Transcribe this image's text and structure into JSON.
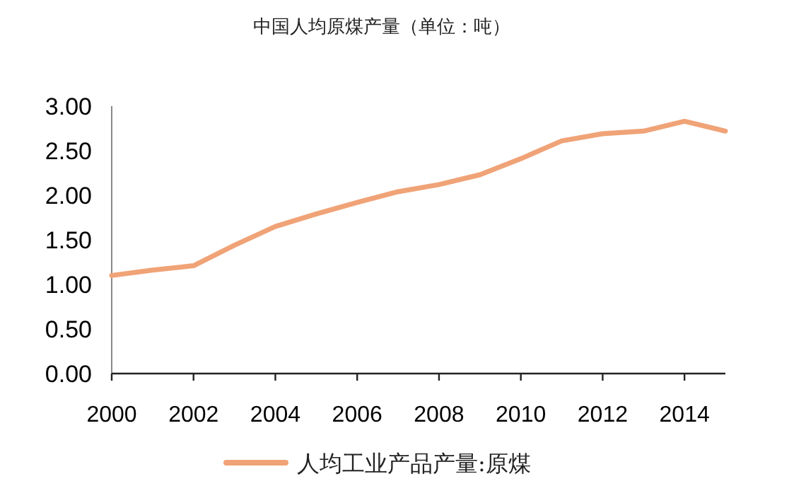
{
  "chart_data": {
    "type": "line",
    "title": "中国人均原煤产量（单位：吨）",
    "x": [
      2000,
      2001,
      2002,
      2003,
      2004,
      2005,
      2006,
      2007,
      2008,
      2009,
      2010,
      2011,
      2012,
      2013,
      2014,
      2015
    ],
    "series": [
      {
        "name": "人均工业产品产量:原煤",
        "color": "#f0a377",
        "values": [
          1.1,
          1.16,
          1.21,
          1.44,
          1.65,
          1.79,
          1.92,
          2.04,
          2.12,
          2.23,
          2.41,
          2.61,
          2.69,
          2.72,
          2.83,
          2.72
        ]
      }
    ],
    "xlim": [
      2000,
      2015
    ],
    "xticks": [
      2000,
      2002,
      2004,
      2006,
      2008,
      2010,
      2012,
      2014
    ],
    "ylim": [
      0,
      3
    ],
    "yticks": [
      {
        "value": 0,
        "label": "0.00"
      },
      {
        "value": 0.5,
        "label": "0.50"
      },
      {
        "value": 1,
        "label": "1.00"
      },
      {
        "value": 1.5,
        "label": "1.50"
      },
      {
        "value": 2,
        "label": "2.00"
      },
      {
        "value": 2.5,
        "label": "2.50"
      },
      {
        "value": 3,
        "label": "3.00"
      }
    ],
    "grid": false,
    "legend": "bottom",
    "marker": "none",
    "line_style": "solid"
  }
}
